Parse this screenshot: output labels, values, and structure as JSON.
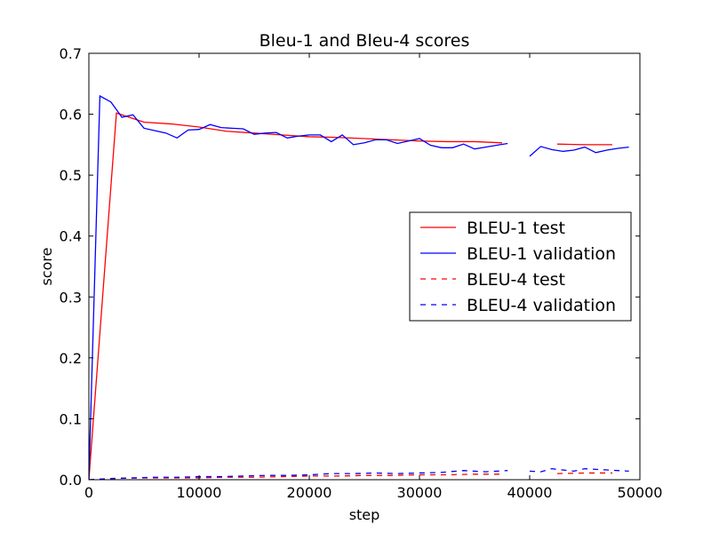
{
  "chart_data": {
    "type": "line",
    "title": "Bleu-1 and Bleu-4 scores",
    "xlabel": "step",
    "ylabel": "score",
    "xlim": [
      0,
      50000
    ],
    "ylim": [
      0,
      0.7
    ],
    "xticks": [
      0,
      10000,
      20000,
      30000,
      40000,
      50000
    ],
    "yticks": [
      0.0,
      0.1,
      0.2,
      0.3,
      0.4,
      0.5,
      0.6,
      0.7
    ],
    "xtick_labels": [
      "0",
      "10000",
      "20000",
      "30000",
      "40000",
      "50000"
    ],
    "ytick_labels": [
      "0.0",
      "0.1",
      "0.2",
      "0.3",
      "0.4",
      "0.5",
      "0.6",
      "0.7"
    ],
    "grid": false,
    "legend": "center-right",
    "series": [
      {
        "name": "BLEU-1 test",
        "color": "#ff0000",
        "dash": "solid",
        "segments": [
          [
            [
              0,
              0.0
            ],
            [
              2500,
              0.602
            ],
            [
              5000,
              0.587
            ],
            [
              7500,
              0.584
            ],
            [
              10000,
              0.579
            ],
            [
              12500,
              0.572
            ],
            [
              15000,
              0.569
            ],
            [
              17500,
              0.566
            ],
            [
              20000,
              0.563
            ],
            [
              22500,
              0.562
            ],
            [
              25000,
              0.56
            ],
            [
              27500,
              0.558
            ],
            [
              30000,
              0.556
            ],
            [
              32500,
              0.555
            ],
            [
              35000,
              0.555
            ],
            [
              37500,
              0.553
            ]
          ],
          [
            [
              42500,
              0.551
            ],
            [
              45000,
              0.55
            ],
            [
              47500,
              0.55
            ]
          ]
        ]
      },
      {
        "name": "BLEU-1 validation",
        "color": "#0000ff",
        "dash": "solid",
        "segments": [
          [
            [
              0,
              0.0
            ],
            [
              1000,
              0.63
            ],
            [
              2000,
              0.62
            ],
            [
              3000,
              0.595
            ],
            [
              4000,
              0.599
            ],
            [
              5000,
              0.577
            ],
            [
              6000,
              0.573
            ],
            [
              7000,
              0.569
            ],
            [
              8000,
              0.561
            ],
            [
              9000,
              0.574
            ],
            [
              10000,
              0.575
            ],
            [
              11000,
              0.583
            ],
            [
              12000,
              0.578
            ],
            [
              13000,
              0.577
            ],
            [
              14000,
              0.576
            ],
            [
              15000,
              0.567
            ],
            [
              16000,
              0.569
            ],
            [
              17000,
              0.57
            ],
            [
              18000,
              0.561
            ],
            [
              19000,
              0.564
            ],
            [
              20000,
              0.566
            ],
            [
              21000,
              0.566
            ],
            [
              22000,
              0.555
            ],
            [
              23000,
              0.566
            ],
            [
              24000,
              0.55
            ],
            [
              25000,
              0.553
            ],
            [
              26000,
              0.558
            ],
            [
              27000,
              0.558
            ],
            [
              28000,
              0.552
            ],
            [
              29000,
              0.556
            ],
            [
              30000,
              0.56
            ],
            [
              31000,
              0.549
            ],
            [
              32000,
              0.545
            ],
            [
              33000,
              0.545
            ],
            [
              34000,
              0.551
            ],
            [
              35000,
              0.543
            ],
            [
              36000,
              0.546
            ],
            [
              37000,
              0.549
            ],
            [
              38000,
              0.552
            ]
          ],
          [
            [
              40000,
              0.531
            ],
            [
              41000,
              0.547
            ],
            [
              42000,
              0.542
            ],
            [
              43000,
              0.539
            ],
            [
              44000,
              0.541
            ],
            [
              45000,
              0.546
            ],
            [
              46000,
              0.537
            ],
            [
              47000,
              0.541
            ],
            [
              48000,
              0.544
            ],
            [
              49000,
              0.546
            ]
          ]
        ]
      },
      {
        "name": "BLEU-4 test",
        "color": "#ff0000",
        "dash": "dashed",
        "segments": [
          [
            [
              0,
              0.0
            ],
            [
              2500,
              0.002
            ],
            [
              5000,
              0.003
            ],
            [
              7500,
              0.003
            ],
            [
              10000,
              0.003
            ],
            [
              12500,
              0.004
            ],
            [
              15000,
              0.004
            ],
            [
              17500,
              0.005
            ],
            [
              20000,
              0.006
            ],
            [
              22500,
              0.006
            ],
            [
              25000,
              0.007
            ],
            [
              27500,
              0.007
            ],
            [
              30000,
              0.008
            ],
            [
              32500,
              0.008
            ],
            [
              35000,
              0.009
            ],
            [
              37500,
              0.009
            ]
          ],
          [
            [
              42500,
              0.01
            ],
            [
              45000,
              0.011
            ],
            [
              47500,
              0.011
            ]
          ]
        ]
      },
      {
        "name": "BLEU-4 validation",
        "color": "#0000ff",
        "dash": "dashed",
        "segments": [
          [
            [
              0,
              0.0
            ],
            [
              2000,
              0.002
            ],
            [
              4000,
              0.003
            ],
            [
              6000,
              0.004
            ],
            [
              8000,
              0.004
            ],
            [
              10000,
              0.005
            ],
            [
              12000,
              0.005
            ],
            [
              14000,
              0.006
            ],
            [
              16000,
              0.007
            ],
            [
              18000,
              0.007
            ],
            [
              20000,
              0.008
            ],
            [
              22000,
              0.01
            ],
            [
              24000,
              0.01
            ],
            [
              26000,
              0.011
            ],
            [
              28000,
              0.01
            ],
            [
              30000,
              0.011
            ],
            [
              32000,
              0.012
            ],
            [
              34000,
              0.015
            ],
            [
              36000,
              0.013
            ],
            [
              38000,
              0.015
            ]
          ],
          [
            [
              40000,
              0.014
            ],
            [
              41000,
              0.013
            ],
            [
              42000,
              0.018
            ],
            [
              43000,
              0.016
            ],
            [
              44000,
              0.014
            ],
            [
              45000,
              0.018
            ],
            [
              46000,
              0.017
            ],
            [
              47000,
              0.016
            ],
            [
              48000,
              0.015
            ],
            [
              49000,
              0.014
            ]
          ]
        ]
      }
    ]
  }
}
